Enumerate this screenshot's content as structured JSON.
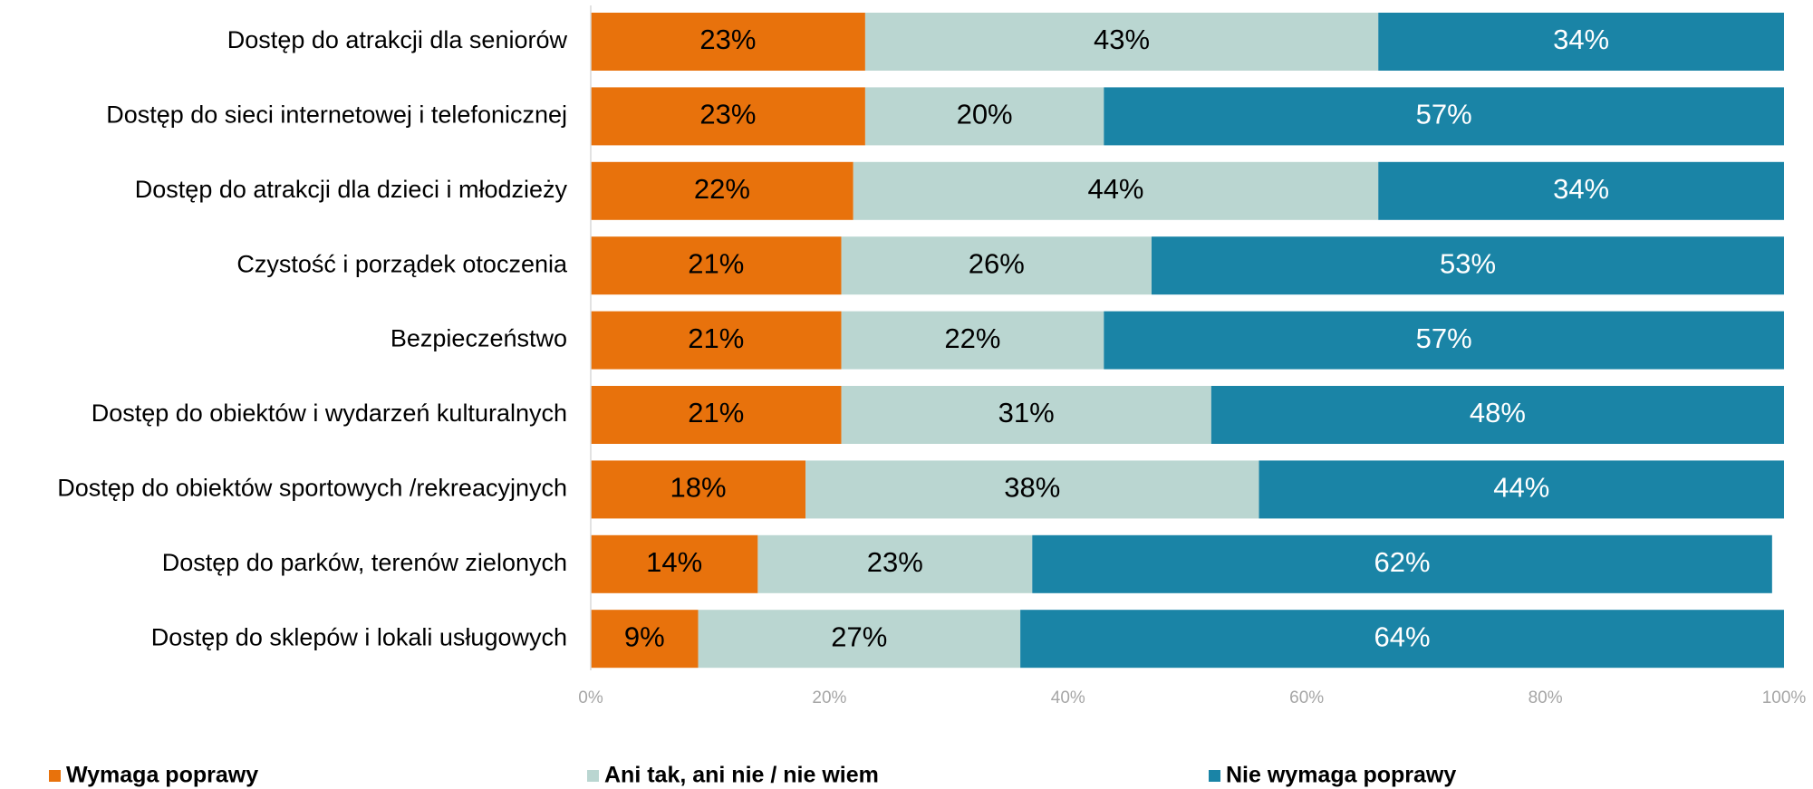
{
  "chart_data": {
    "type": "bar",
    "orientation": "horizontal",
    "stacked": true,
    "title": "",
    "xlabel": "",
    "ylabel": "",
    "xlim": [
      0,
      100
    ],
    "x_ticks": [
      "0%",
      "20%",
      "40%",
      "60%",
      "80%",
      "100%"
    ],
    "grid": false,
    "legend_position": "bottom",
    "categories": [
      "Dostęp do atrakcji dla seniorów",
      "Dostęp do sieci internetowej i telefonicznej",
      "Dostęp do atrakcji dla dzieci i młodzieży",
      "Czystość i porządek otoczenia",
      "Bezpieczeństwo",
      "Dostęp do obiektów i wydarzeń kulturalnych",
      "Dostęp do obiektów sportowych /rekreacyjnych",
      "Dostęp do parków, terenów zielonych",
      "Dostęp do sklepów i lokali usługowych"
    ],
    "series": [
      {
        "name": "Wymaga poprawy",
        "color": "#e8720c",
        "label_color": "#000000",
        "values": [
          23,
          23,
          22,
          21,
          21,
          21,
          18,
          14,
          9
        ]
      },
      {
        "name": "Ani tak, ani nie / nie wiem",
        "color": "#bad6d1",
        "label_color": "#000000",
        "values": [
          43,
          20,
          44,
          26,
          22,
          31,
          38,
          23,
          27
        ]
      },
      {
        "name": "Nie wymaga poprawy",
        "color": "#1a84a6",
        "label_color": "#ffffff",
        "values": [
          34,
          57,
          34,
          53,
          57,
          48,
          44,
          62,
          64
        ]
      }
    ]
  }
}
